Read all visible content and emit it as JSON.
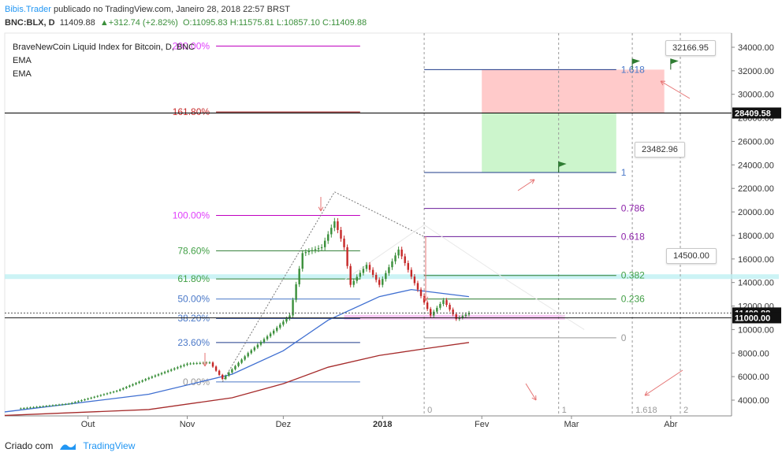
{
  "header": {
    "author": "Bibis.Trader",
    "published_text": "publicado no TradingView.com, Janeiro 28, 2018 22:57 BRST",
    "symbol": "BNC:BLX, D",
    "last": "11409.88",
    "change": "+312.74 (+2.82%)",
    "open": "O:11095.83",
    "high": "H:11575.81",
    "low": "L:10857.10",
    "close": "C:11409.88"
  },
  "legend": {
    "title": "BraveNewCoin Liquid Index for Bitcoin, D, BNC",
    "ema1": "EMA",
    "ema2": "EMA"
  },
  "footer": {
    "created": "Criado com",
    "brand": "TradingView"
  },
  "colors": {
    "up": "#3a8f3a",
    "down": "#c62828",
    "ema_fast": "#3f6fd1",
    "ema_slow": "#a52a2a",
    "fib_magenta": "#e040fb",
    "fib_green": "#43a047",
    "fib_blue": "#4a78c8",
    "ext_purple": "#8e24aa",
    "target_green": "#ccf5cc",
    "stop_red": "#ffcaca"
  },
  "chart_data": {
    "type": "candlestick",
    "title": "BraveNewCoin Liquid Index for Bitcoin, D, BNC",
    "x_labels": [
      "Out",
      "Nov",
      "Dez",
      "2018",
      "Fev",
      "Mar",
      "Abr"
    ],
    "y_ticks": [
      4000,
      6000,
      8000,
      10000,
      12000,
      14000,
      16000,
      18000,
      20000,
      22000,
      24000,
      26000,
      28000,
      30000,
      32000,
      34000
    ],
    "y_tick_labels": [
      "4000.00",
      "6000.00",
      "8000.00",
      "10000.00",
      "12000.00",
      "14000.00",
      "16000.00",
      "18000.00",
      "20000.00",
      "22000.00",
      "24000.00",
      "26000.00",
      "28000.00",
      "30000.00",
      "32000.00",
      "34000.00"
    ],
    "ylim": [
      3000,
      35000
    ],
    "price_path": [
      [
        "2017-09-10",
        3300
      ],
      [
        "2017-09-25",
        3700
      ],
      [
        "2017-10-10",
        4800
      ],
      [
        "2017-10-20",
        5900
      ],
      [
        "2017-11-01",
        7100
      ],
      [
        "2017-11-08",
        7200
      ],
      [
        "2017-11-12",
        5800
      ],
      [
        "2017-11-20",
        8000
      ],
      [
        "2017-11-28",
        9900
      ],
      [
        "2017-12-03",
        11200
      ],
      [
        "2017-12-07",
        16500
      ],
      [
        "2017-12-13",
        17000
      ],
      [
        "2017-12-17",
        19200
      ],
      [
        "2017-12-20",
        17000
      ],
      [
        "2017-12-22",
        13800
      ],
      [
        "2017-12-27",
        15500
      ],
      [
        "2017-12-31",
        13800
      ],
      [
        "2018-01-06",
        16800
      ],
      [
        "2018-01-10",
        14500
      ],
      [
        "2018-01-16",
        11200
      ],
      [
        "2018-01-20",
        12500
      ],
      [
        "2018-01-24",
        10900
      ],
      [
        "2018-01-28",
        11409.88
      ]
    ],
    "ema_fast": [
      [
        "2017-09-05",
        3000
      ],
      [
        "2017-10-20",
        4500
      ],
      [
        "2017-11-15",
        6200
      ],
      [
        "2017-12-01",
        8200
      ],
      [
        "2017-12-15",
        10800
      ],
      [
        "2017-12-31",
        12800
      ],
      [
        "2018-01-10",
        13400
      ],
      [
        "2018-01-28",
        12800
      ]
    ],
    "ema_slow": [
      [
        "2017-09-05",
        2700
      ],
      [
        "2017-10-20",
        3200
      ],
      [
        "2017-11-15",
        4200
      ],
      [
        "2017-12-01",
        5400
      ],
      [
        "2017-12-15",
        6800
      ],
      [
        "2017-12-31",
        7800
      ],
      [
        "2018-01-15",
        8400
      ],
      [
        "2018-01-28",
        8900
      ]
    ],
    "fib_retracement": [
      {
        "label": "0.00%",
        "price": 5550
      },
      {
        "label": "23.60%",
        "price": 8900
      },
      {
        "label": "38.20%",
        "price": 10950
      },
      {
        "label": "50.00%",
        "price": 12600
      },
      {
        "label": "61.80%",
        "price": 14300
      },
      {
        "label": "78.60%",
        "price": 16700
      },
      {
        "label": "100.00%",
        "price": 19700
      },
      {
        "label": "161.80%",
        "price": 28500
      },
      {
        "label": "200.00%",
        "price": 34100
      }
    ],
    "fib_extension": [
      {
        "label": "0",
        "price": 9300
      },
      {
        "label": "0.236",
        "price": 12600
      },
      {
        "label": "0.382",
        "price": 14600
      },
      {
        "label": "0.618",
        "price": 17900
      },
      {
        "label": "0.786",
        "price": 20300
      },
      {
        "label": "1",
        "price": 23350
      },
      {
        "label": "1.618",
        "price": 32100
      }
    ],
    "time_zones": [
      "0",
      "1",
      "1.618",
      "2"
    ],
    "price_tags": [
      {
        "label": "11409.88",
        "price": 11409.88
      },
      {
        "label": "11000.00",
        "price": 11000
      },
      {
        "label": "28409.58",
        "price": 28409.58
      }
    ],
    "callouts": [
      "32166.95",
      "23482.96",
      "14500.00"
    ],
    "target_zone": [
      23350,
      28409.58
    ],
    "stop_zone": [
      28409.58,
      32100
    ]
  }
}
